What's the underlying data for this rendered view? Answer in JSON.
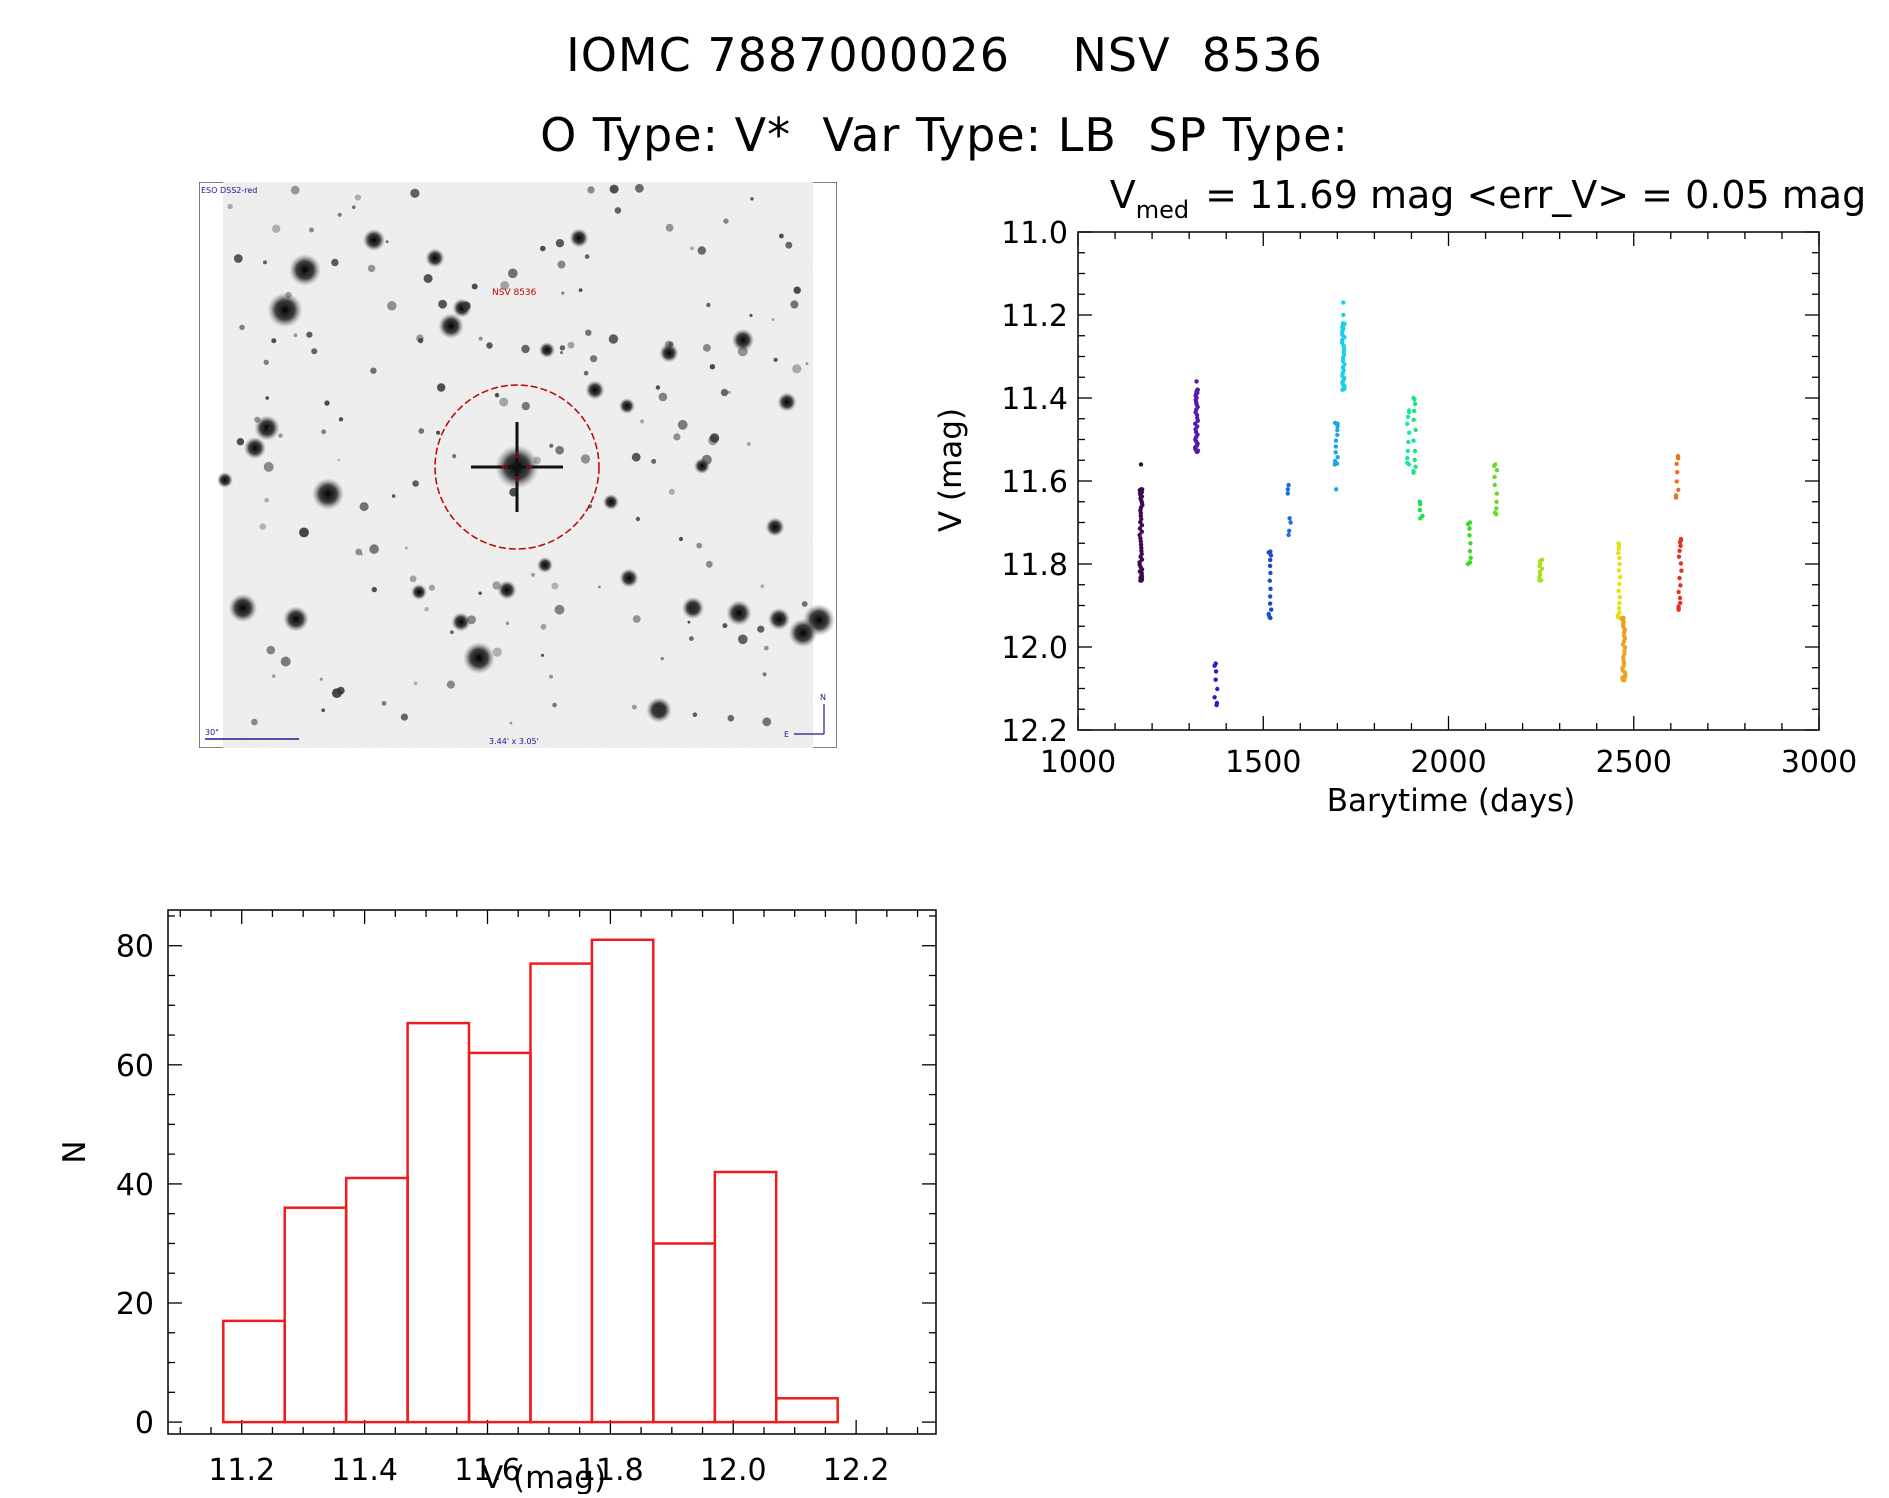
{
  "header": {
    "title": "IOMC 7887000026    NSV  8536",
    "subtitle": "O Type: V*  Var Type: LB  SP Type:"
  },
  "finder": {
    "survey_label": "ESO DSS2-red",
    "target_label": "NSV 8536",
    "scale_label": "30\"",
    "fov_label": "3.44' x 3.05'",
    "north_label": "N",
    "east_label": "E"
  },
  "colors": {
    "histogram": "#ee1c1c",
    "marker": "#c00000",
    "axes": "#000000"
  },
  "chart_data": [
    {
      "type": "scatter",
      "id": "light-curve",
      "title_main": "V",
      "title_sub": "med",
      "title_rest": "= 11.69 mag <err_V> = 0.05 mag",
      "xlabel": "Barytime (days)",
      "ylabel": "V (mag)",
      "xlim": [
        1000,
        3000
      ],
      "ylim": [
        12.2,
        11.0
      ],
      "xticks": [
        "1000",
        "1500",
        "2000",
        "2500",
        "3000"
      ],
      "xtick_values": [
        1000,
        1500,
        2000,
        2500,
        3000
      ],
      "yticks": [
        "11.0",
        "11.2",
        "11.4",
        "11.6",
        "11.8",
        "12.0",
        "12.2"
      ],
      "ytick_values": [
        11.0,
        11.2,
        11.4,
        11.6,
        11.8,
        12.0,
        12.2
      ],
      "groups": [
        {
          "x": 1170,
          "y_min": 11.62,
          "y_max": 11.84,
          "n": 45,
          "color": "#3d0a50",
          "extra": [
            11.56
          ]
        },
        {
          "x": 1320,
          "y_min": 11.38,
          "y_max": 11.53,
          "n": 35,
          "color": "#5a1aa8",
          "extra": [
            11.36
          ]
        },
        {
          "x": 1372,
          "y_min": 12.04,
          "y_max": 12.14,
          "n": 8,
          "color": "#2222cc",
          "extra": []
        },
        {
          "x": 1518,
          "y_min": 11.77,
          "y_max": 11.93,
          "n": 14,
          "color": "#1a4ad0",
          "extra": []
        },
        {
          "x": 1568,
          "y_min": 11.61,
          "y_max": 11.63,
          "n": 3,
          "color": "#1a6ee0",
          "extra": []
        },
        {
          "x": 1572,
          "y_min": 11.69,
          "y_max": 11.73,
          "n": 4,
          "color": "#1a6ee0",
          "extra": []
        },
        {
          "x": 1697,
          "y_min": 11.46,
          "y_max": 11.56,
          "n": 12,
          "color": "#1aa6e8",
          "extra": [
            11.62
          ]
        },
        {
          "x": 1716,
          "y_min": 11.22,
          "y_max": 11.38,
          "n": 34,
          "color": "#1ad0e8",
          "extra": [
            11.17,
            11.2
          ]
        },
        {
          "x": 1892,
          "y_min": 11.43,
          "y_max": 11.56,
          "n": 10,
          "color": "#1ae6b0",
          "extra": []
        },
        {
          "x": 1908,
          "y_min": 11.4,
          "y_max": 11.58,
          "n": 12,
          "color": "#1ae680",
          "extra": []
        },
        {
          "x": 1926,
          "y_min": 11.65,
          "y_max": 11.69,
          "n": 5,
          "color": "#1ae050",
          "extra": []
        },
        {
          "x": 2056,
          "y_min": 11.7,
          "y_max": 11.8,
          "n": 9,
          "color": "#33dd22",
          "extra": []
        },
        {
          "x": 2127,
          "y_min": 11.56,
          "y_max": 11.68,
          "n": 10,
          "color": "#66dd22",
          "extra": []
        },
        {
          "x": 2249,
          "y_min": 11.79,
          "y_max": 11.84,
          "n": 12,
          "color": "#a8e020",
          "extra": []
        },
        {
          "x": 2460,
          "y_min": 11.75,
          "y_max": 11.93,
          "n": 18,
          "color": "#e6e010",
          "extra": []
        },
        {
          "x": 2473,
          "y_min": 11.93,
          "y_max": 12.08,
          "n": 32,
          "color": "#f0a020",
          "extra": []
        },
        {
          "x": 2618,
          "y_min": 11.54,
          "y_max": 11.64,
          "n": 8,
          "color": "#f07020",
          "extra": []
        },
        {
          "x": 2625,
          "y_min": 11.74,
          "y_max": 11.91,
          "n": 16,
          "color": "#e83020",
          "extra": []
        }
      ]
    },
    {
      "type": "bar",
      "id": "histogram",
      "xlabel": "V (mag)",
      "ylabel": "N",
      "xlim": [
        11.08,
        12.33
      ],
      "ylim": [
        -2,
        86
      ],
      "xticks": [
        "11.2",
        "11.4",
        "11.6",
        "11.8",
        "12.0",
        "12.2"
      ],
      "xtick_values": [
        11.2,
        11.4,
        11.6,
        11.8,
        12.0,
        12.2
      ],
      "yticks": [
        "0",
        "20",
        "40",
        "60",
        "80"
      ],
      "ytick_values": [
        0,
        20,
        40,
        60,
        80
      ],
      "bin_edges": [
        11.17,
        11.27,
        11.37,
        11.47,
        11.57,
        11.67,
        11.77,
        11.87,
        11.97,
        12.07,
        12.17
      ],
      "values": [
        17,
        36,
        41,
        67,
        62,
        77,
        81,
        30,
        42,
        4
      ]
    }
  ]
}
